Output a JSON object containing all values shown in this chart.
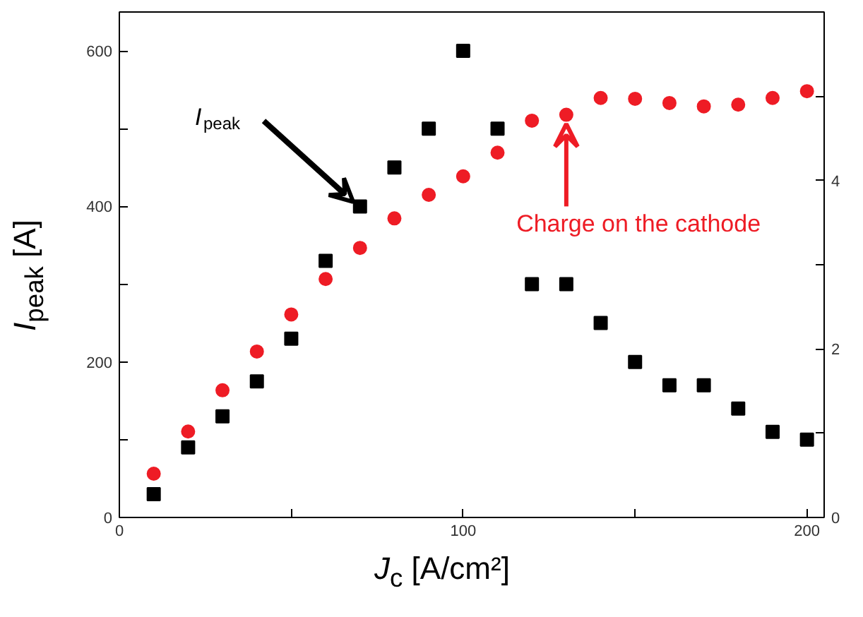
{
  "chart_data": {
    "type": "scatter",
    "xlabel": "J$_{c}$ [A/cm²]",
    "ylabel": "I$_{peak}$ [A]",
    "x": [
      10,
      20,
      30,
      40,
      50,
      60,
      70,
      80,
      90,
      100,
      110,
      120,
      130,
      140,
      150,
      160,
      170,
      180,
      190,
      200
    ],
    "series": [
      {
        "color": "#000000",
        "marker": "square",
        "values": [
          30,
          90,
          130,
          175,
          230,
          330,
          400,
          450,
          500,
          600,
          500,
          300,
          300,
          250,
          200,
          170,
          170,
          140,
          110,
          100
        ]
      },
      {
        "color": "#ee1c25",
        "marker": "circle",
        "axis": "y2",
        "values": [
          0.52,
          1.02,
          1.51,
          1.97,
          2.41,
          2.83,
          3.2,
          3.55,
          3.83,
          4.05,
          4.33,
          4.71,
          4.78,
          4.98,
          4.97,
          4.92,
          4.88,
          4.9,
          4.98,
          5.06
        ]
      }
    ],
    "xlim": [
      0,
      205
    ],
    "ylim": [
      0,
      650
    ],
    "y2lim": [
      0,
      6
    ],
    "xticks": [
      0,
      {
        "value": 50,
        "label": null
      },
      100,
      {
        "value": 150,
        "label": null
      },
      200
    ],
    "yticks": [
      0,
      {
        "value": 100,
        "label": null
      },
      200,
      {
        "value": 300,
        "label": null
      },
      400,
      {
        "value": 500,
        "label": null
      },
      600
    ],
    "y2ticks": [
      0,
      {
        "value": 1,
        "label": null
      },
      2,
      {
        "value": 3,
        "label": null
      },
      4,
      {
        "value": 5,
        "label": null
      }
    ],
    "grid": false,
    "annotations": [
      {
        "text": "I$_{peak}$",
        "x": 70,
        "y": 400
      },
      {
        "text": "Charge on the cathode",
        "x": 130,
        "y": 518
      }
    ]
  }
}
